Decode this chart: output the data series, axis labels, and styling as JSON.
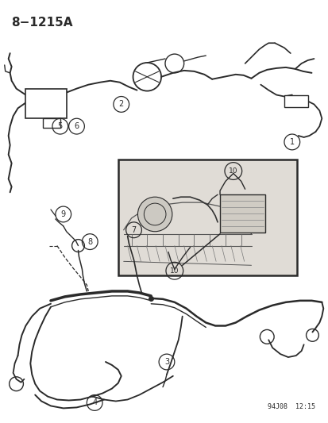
{
  "title": "8−1215A",
  "watermark": "94J08  12:15",
  "bg": "#ffffff",
  "dc": "#2a2a2a",
  "fig_width": 4.14,
  "fig_height": 5.33,
  "dpi": 100
}
